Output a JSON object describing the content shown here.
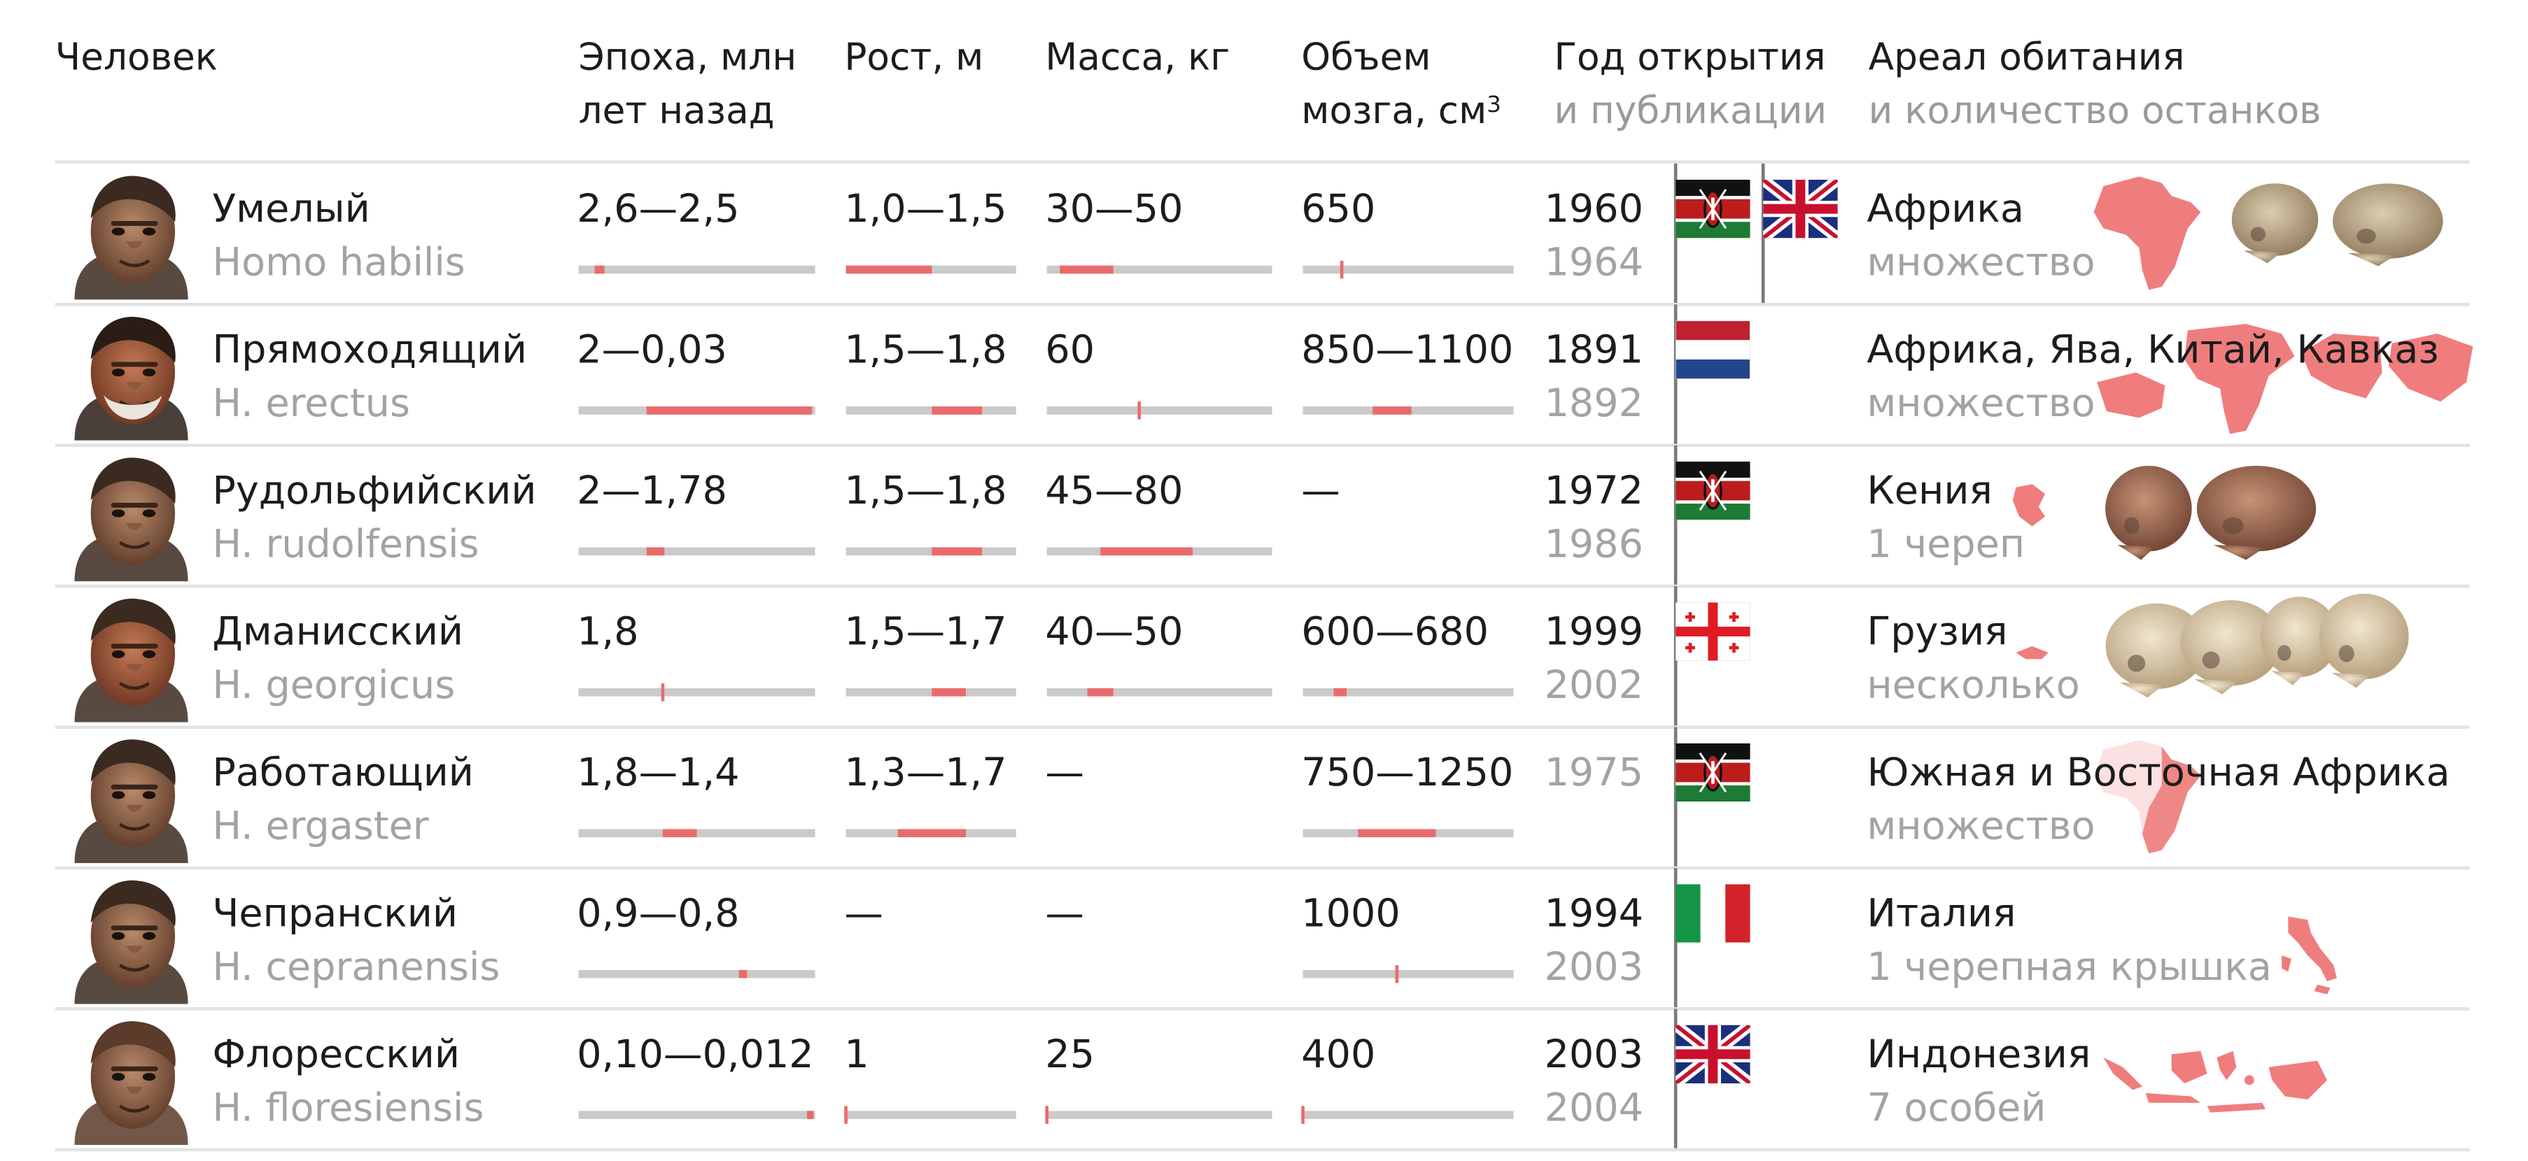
{
  "header": {
    "human": "Человек",
    "epoch_line1": "Эпоха, млн",
    "epoch_line2": "лет назад",
    "height": "Рост, м",
    "mass": "Масса, кг",
    "brain_line1": "Объем",
    "brain_line2": "мозга, см",
    "brain_sup": "3",
    "discovery_line1": "Год открытия",
    "discovery_line2": "и публикации",
    "habitat_line1": "Ареал обитания",
    "habitat_line2": "и количество останков"
  },
  "scales": {
    "epoch_max_million_years": 2.8,
    "height_range_m": [
      1.0,
      2.0
    ],
    "mass_range_kg": [
      25,
      110
    ],
    "brain_range_cm3": [
      400,
      1750
    ]
  },
  "colors": {
    "accent": "#ea6b6b",
    "track": "#cacaca",
    "secondary_text": "#a3a3a3",
    "map": "#f07d7d"
  },
  "rows": [
    {
      "name": "Умелый",
      "latin": "Homo habilis",
      "portrait": "homo-habilis-portrait",
      "epoch": {
        "text": "2,6—2,5",
        "range": [
          2.6,
          2.5
        ]
      },
      "height": {
        "text": "1,0—1,5",
        "range": [
          1.0,
          1.5
        ]
      },
      "mass": {
        "text": "30—50",
        "range": [
          30,
          50
        ]
      },
      "brain": {
        "text": "650",
        "range": [
          650,
          650
        ]
      },
      "year_discovery": "1960",
      "year_publication": "1964",
      "flags": [
        "kenya",
        "uk"
      ],
      "region": "Африка",
      "remains": "множество",
      "map": "africa",
      "fossils": "two-skulls"
    },
    {
      "name": "Прямоходящий",
      "latin": "H. erectus",
      "portrait": "homo-erectus-portrait",
      "epoch": {
        "text": "2—0,03",
        "range": [
          2.0,
          0.03
        ]
      },
      "height": {
        "text": "1,5—1,8",
        "range": [
          1.5,
          1.8
        ]
      },
      "mass": {
        "text": "60",
        "range": [
          60,
          60
        ]
      },
      "brain": {
        "text": "850—1100",
        "range": [
          850,
          1100
        ]
      },
      "year_discovery": "1891",
      "year_publication": "1892",
      "flags": [
        "netherlands"
      ],
      "region": "Африка, Ява, Китай, Кавказ",
      "remains": "множество",
      "map": "africa-asia",
      "fossils": ""
    },
    {
      "name": "Рудольфийский",
      "latin": "H. rudolfensis",
      "portrait": "homo-rudolfensis-portrait",
      "epoch": {
        "text": "2—1,78",
        "range": [
          2.0,
          1.78
        ]
      },
      "height": {
        "text": "1,5—1,8",
        "range": [
          1.5,
          1.8
        ]
      },
      "mass": {
        "text": "45—80",
        "range": [
          45,
          80
        ]
      },
      "brain": {
        "text": "—",
        "range": null
      },
      "year_discovery": "1972",
      "year_publication": "1986",
      "flags": [
        "kenya"
      ],
      "region": "Кения",
      "remains": "1 череп",
      "map": "kenya",
      "fossils": "two-skulls-brown"
    },
    {
      "name": "Дманисский",
      "latin": "H. georgicus",
      "portrait": "homo-georgicus-portrait",
      "epoch": {
        "text": "1,8",
        "range": [
          1.8,
          1.8
        ]
      },
      "height": {
        "text": "1,5—1,7",
        "range": [
          1.5,
          1.7
        ]
      },
      "mass": {
        "text": "40—50",
        "range": [
          40,
          50
        ]
      },
      "brain": {
        "text": "600—680",
        "range": [
          600,
          680
        ]
      },
      "year_discovery": "1999",
      "year_publication": "2002",
      "flags": [
        "georgia"
      ],
      "region": "Грузия",
      "remains": "несколько",
      "map": "georgia",
      "fossils": "four-skulls"
    },
    {
      "name": "Работающий",
      "latin": "H. ergaster",
      "portrait": "homo-ergaster-portrait",
      "epoch": {
        "text": "1,8—1,4",
        "range": [
          1.8,
          1.4
        ]
      },
      "height": {
        "text": "1,3—1,7",
        "range": [
          1.3,
          1.7
        ]
      },
      "mass": {
        "text": "—",
        "range": null
      },
      "brain": {
        "text": "750—1250",
        "range": [
          750,
          1250
        ]
      },
      "year_discovery": "1975",
      "year_publication": "",
      "flags": [
        "kenya"
      ],
      "region": "Южная и Восточная Африка",
      "remains": "множество",
      "map": "africa-south-east",
      "fossils": ""
    },
    {
      "name": "Чепранский",
      "latin": "H. cepranensis",
      "portrait": "homo-cepranensis-portrait",
      "epoch": {
        "text": "0,9—0,8",
        "range": [
          0.9,
          0.8
        ]
      },
      "height": {
        "text": "—",
        "range": null
      },
      "mass": {
        "text": "—",
        "range": null
      },
      "brain": {
        "text": "1000",
        "range": [
          1000,
          1000
        ]
      },
      "year_discovery": "1994",
      "year_publication": "2003",
      "flags": [
        "italy"
      ],
      "region": "Италия",
      "remains": "1 черепная крышка",
      "map": "italy",
      "fossils": ""
    },
    {
      "name": "Флоресский",
      "latin": "H. floresiensis",
      "portrait": "homo-floresiensis-portrait",
      "epoch": {
        "text": "0,10—0,012",
        "range": [
          0.1,
          0.012
        ]
      },
      "height": {
        "text": "1",
        "range": [
          1.0,
          1.0
        ]
      },
      "mass": {
        "text": "25",
        "range": [
          25,
          25
        ]
      },
      "brain": {
        "text": "400",
        "range": [
          400,
          400
        ]
      },
      "year_discovery": "2003",
      "year_publication": "2004",
      "flags": [
        "uk"
      ],
      "region": "Индонезия",
      "remains": "7 особей",
      "map": "indonesia",
      "fossils": ""
    }
  ]
}
